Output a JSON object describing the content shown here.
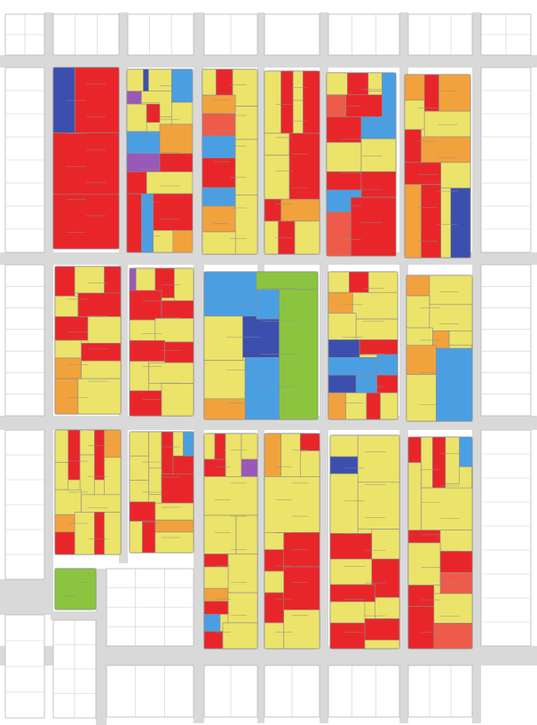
{
  "map": {
    "colors": {
      "background": "#ffffff",
      "street": "#d9d9d9",
      "lot_outline": "#8c8c8c",
      "red": "#e8262a",
      "yellow": "#ece36a",
      "orange": "#f2a23c",
      "light_blue": "#4a9fe3",
      "dark_blue": "#3c4fae",
      "purple": "#9a58b8",
      "green": "#8bc53f",
      "coral": "#ef5b4a"
    },
    "legend": []
  }
}
